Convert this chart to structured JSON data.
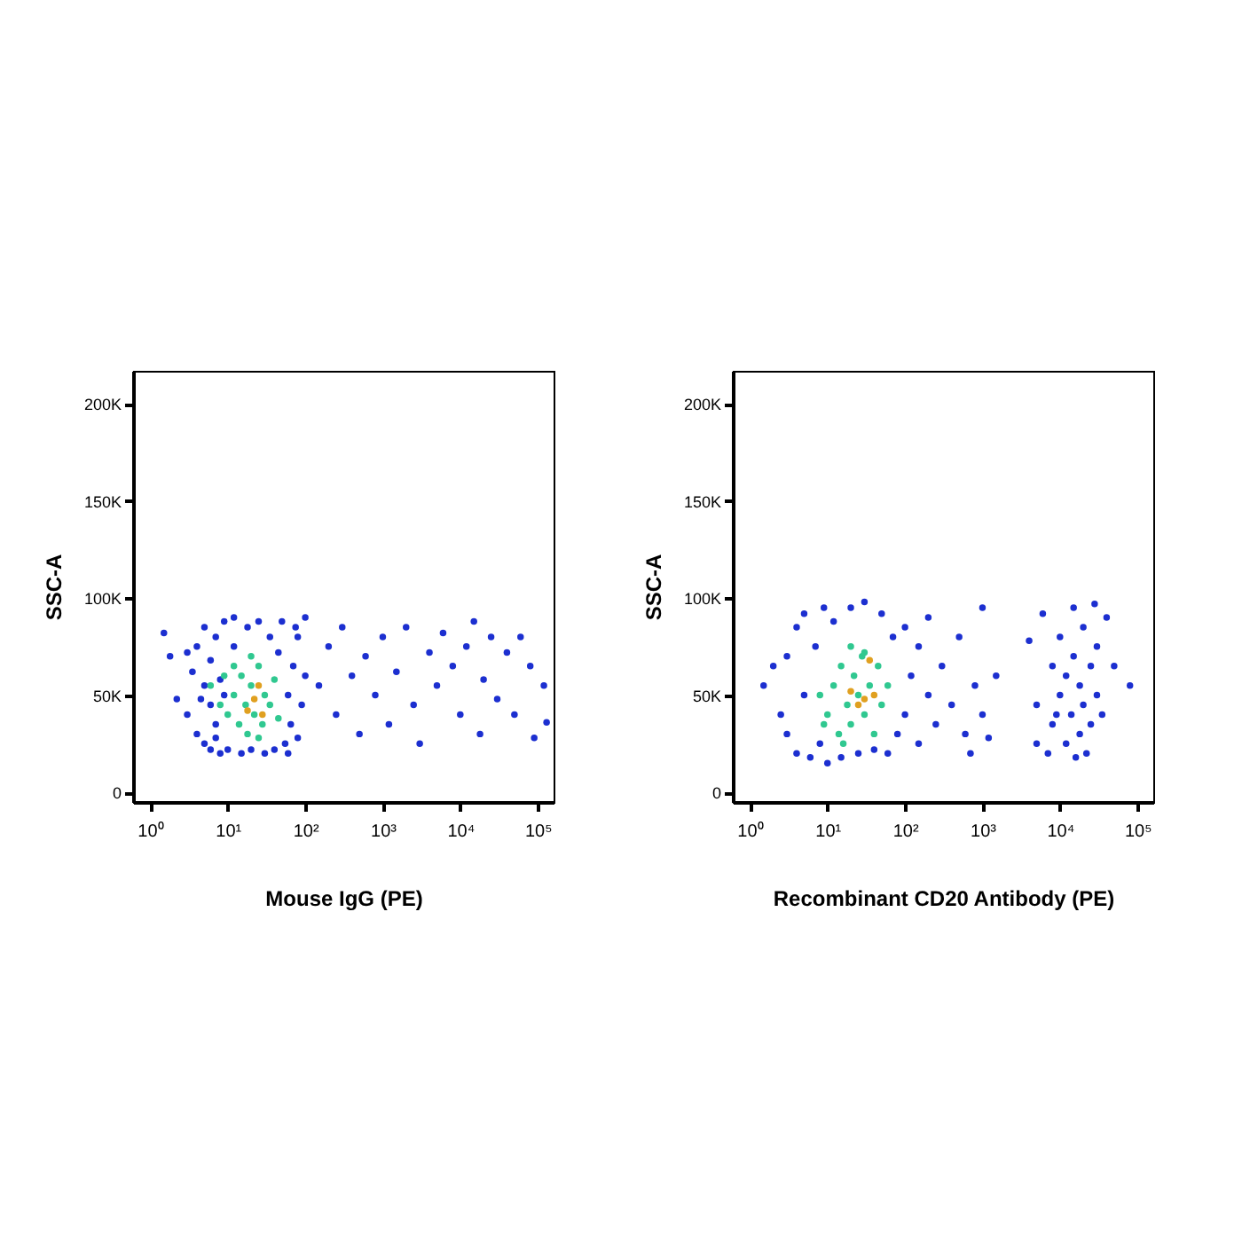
{
  "chart_data": [
    {
      "type": "scatter",
      "xlabel": "Mouse IgG (PE)",
      "ylabel": "SSC-A",
      "log": "x",
      "grid": false,
      "legend": false,
      "marker": "circle",
      "xlim": [
        0.6,
        160000
      ],
      "xticks": [
        {
          "value": 1,
          "label": "10⁰"
        },
        {
          "value": 10,
          "label": "10¹"
        },
        {
          "value": 100,
          "label": "10²"
        },
        {
          "value": 1000,
          "label": "10³"
        },
        {
          "value": 10000,
          "label": "10⁴"
        },
        {
          "value": 100000,
          "label": "10⁵"
        }
      ],
      "ylim": [
        -5000,
        217000
      ],
      "yticks": [
        0,
        {
          "value": 50000,
          "label": "50K"
        },
        {
          "value": 100000,
          "label": "100K"
        },
        {
          "value": 150000,
          "label": "150K"
        },
        {
          "value": 200000,
          "label": "200K"
        }
      ],
      "series": [
        {
          "color": "#1c2fd0",
          "x": [
            2.2,
            3,
            3.5,
            4,
            4,
            5,
            5,
            5,
            6,
            6,
            6,
            7,
            7,
            8,
            8,
            9,
            10,
            12,
            12,
            15,
            18,
            20,
            25,
            30,
            35,
            40,
            45,
            50,
            55,
            60,
            65,
            70,
            80,
            80,
            90,
            100,
            100,
            3,
            4.5,
            7,
            9,
            60,
            75,
            1.5,
            1.8,
            150,
            200,
            250,
            300,
            400,
            500,
            600,
            800,
            1000,
            1200,
            1500,
            2000,
            2500,
            3000,
            4000,
            5000,
            6000,
            8000,
            10000,
            12000,
            15000,
            18000,
            20000,
            25000,
            30000,
            40000,
            50000,
            60000,
            80000,
            90000,
            120000,
            130000
          ],
          "values": [
            48000,
            40000,
            62000,
            30000,
            75000,
            25000,
            55000,
            85000,
            22000,
            45000,
            68000,
            35000,
            80000,
            20000,
            58000,
            88000,
            22000,
            75000,
            90000,
            20000,
            85000,
            22000,
            88000,
            20000,
            80000,
            22000,
            72000,
            88000,
            25000,
            50000,
            35000,
            65000,
            28000,
            80000,
            45000,
            90000,
            60000,
            72000,
            48000,
            28000,
            50000,
            20000,
            85000,
            82000,
            70000,
            55000,
            75000,
            40000,
            85000,
            60000,
            30000,
            70000,
            50000,
            80000,
            35000,
            62000,
            85000,
            45000,
            25000,
            72000,
            55000,
            82000,
            65000,
            40000,
            75000,
            88000,
            30000,
            58000,
            80000,
            48000,
            72000,
            40000,
            80000,
            65000,
            28000,
            55000,
            36000
          ]
        },
        {
          "color": "#30c890",
          "x": [
            10,
            12,
            14,
            15,
            17,
            18,
            20,
            22,
            25,
            28,
            30,
            8,
            9,
            35,
            40,
            12,
            20,
            45,
            6,
            25
          ],
          "values": [
            40000,
            50000,
            35000,
            60000,
            45000,
            30000,
            55000,
            40000,
            65000,
            35000,
            50000,
            45000,
            60000,
            45000,
            58000,
            65000,
            70000,
            38000,
            55000,
            28000
          ]
        },
        {
          "color": "#e0a020",
          "x": [
            18,
            22,
            28,
            25
          ],
          "values": [
            42000,
            48000,
            40000,
            55000
          ]
        }
      ]
    },
    {
      "type": "scatter",
      "xlabel": "Recombinant CD20 Antibody (PE)",
      "ylabel": "SSC-A",
      "log": "x",
      "grid": false,
      "legend": false,
      "marker": "circle",
      "xlim": [
        0.6,
        160000
      ],
      "xticks": [
        {
          "value": 1,
          "label": "10⁰"
        },
        {
          "value": 10,
          "label": "10¹"
        },
        {
          "value": 100,
          "label": "10²"
        },
        {
          "value": 1000,
          "label": "10³"
        },
        {
          "value": 10000,
          "label": "10⁴"
        },
        {
          "value": 100000,
          "label": "10⁵"
        }
      ],
      "ylim": [
        -5000,
        217000
      ],
      "yticks": [
        0,
        {
          "value": 50000,
          "label": "50K"
        },
        {
          "value": 100000,
          "label": "100K"
        },
        {
          "value": 150000,
          "label": "150K"
        },
        {
          "value": 200000,
          "label": "200K"
        }
      ],
      "series": [
        {
          "color": "#1c2fd0",
          "x": [
            1.5,
            2,
            2.5,
            3,
            3,
            4,
            4,
            5,
            5,
            6,
            7,
            8,
            9,
            10,
            12,
            15,
            20,
            25,
            30,
            40,
            50,
            60,
            70,
            80,
            100,
            100,
            120,
            150,
            150,
            200,
            200,
            250,
            300,
            400,
            500,
            600,
            800,
            1000,
            1000,
            1200,
            1500,
            700,
            4000,
            5000,
            5000,
            6000,
            7000,
            8000,
            8000,
            10000,
            10000,
            12000,
            12000,
            14000,
            15000,
            15000,
            18000,
            18000,
            20000,
            20000,
            22000,
            25000,
            25000,
            28000,
            30000,
            30000,
            35000,
            40000,
            50000,
            80000,
            9000,
            16000
          ],
          "values": [
            55000,
            65000,
            40000,
            70000,
            30000,
            85000,
            20000,
            50000,
            92000,
            18000,
            75000,
            25000,
            95000,
            15000,
            88000,
            18000,
            95000,
            20000,
            98000,
            22000,
            92000,
            20000,
            80000,
            30000,
            85000,
            40000,
            60000,
            25000,
            75000,
            50000,
            90000,
            35000,
            65000,
            45000,
            80000,
            30000,
            55000,
            95000,
            40000,
            28000,
            60000,
            20000,
            78000,
            45000,
            25000,
            92000,
            20000,
            35000,
            65000,
            50000,
            80000,
            25000,
            60000,
            40000,
            95000,
            70000,
            30000,
            55000,
            85000,
            45000,
            20000,
            65000,
            35000,
            97000,
            50000,
            75000,
            40000,
            90000,
            65000,
            55000,
            40000,
            18000
          ]
        },
        {
          "color": "#30c890",
          "x": [
            10,
            12,
            14,
            15,
            18,
            20,
            22,
            25,
            28,
            30,
            35,
            40,
            45,
            50,
            8,
            9,
            16,
            60,
            30,
            20
          ],
          "values": [
            40000,
            55000,
            30000,
            65000,
            45000,
            35000,
            60000,
            50000,
            70000,
            40000,
            55000,
            30000,
            65000,
            45000,
            50000,
            35000,
            25000,
            55000,
            72000,
            75000
          ]
        },
        {
          "color": "#e0a020",
          "x": [
            25,
            30,
            20,
            35,
            40
          ],
          "values": [
            45000,
            48000,
            52000,
            68000,
            50000
          ]
        }
      ]
    }
  ]
}
